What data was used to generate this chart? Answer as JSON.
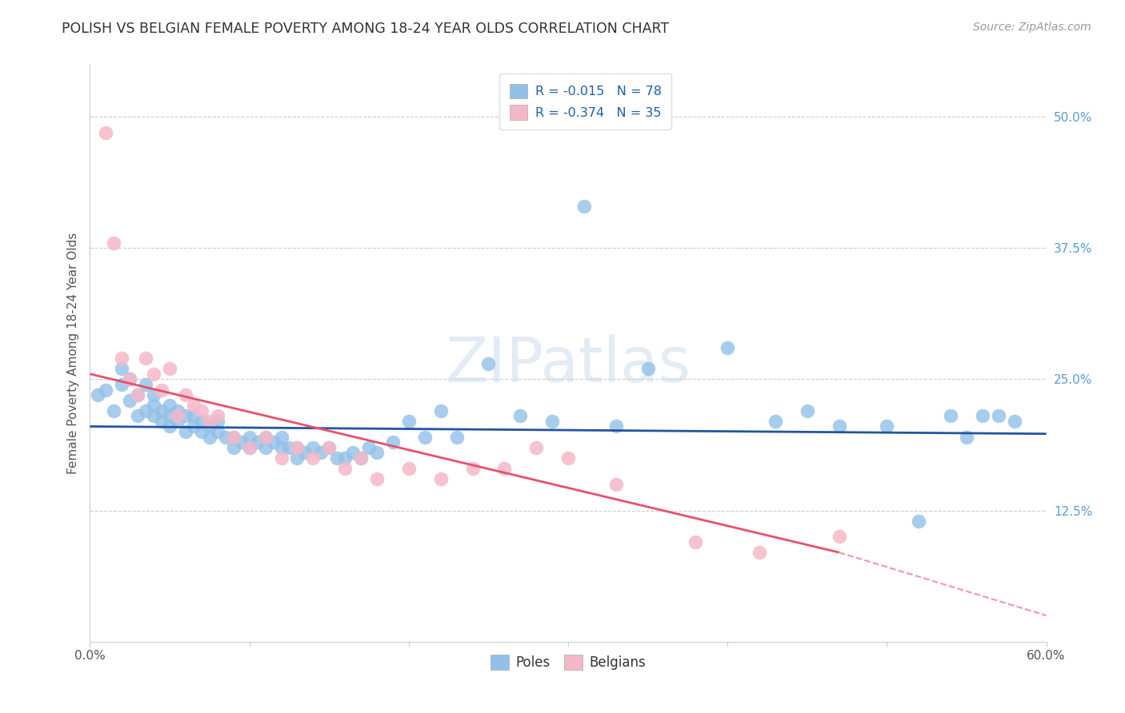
{
  "title": "POLISH VS BELGIAN FEMALE POVERTY AMONG 18-24 YEAR OLDS CORRELATION CHART",
  "source": "Source: ZipAtlas.com",
  "ylabel": "Female Poverty Among 18-24 Year Olds",
  "xlim": [
    0.0,
    0.6
  ],
  "ylim": [
    0.0,
    0.55
  ],
  "xticks": [
    0.0,
    0.1,
    0.2,
    0.3,
    0.4,
    0.5,
    0.6
  ],
  "xticklabels": [
    "0.0%",
    "",
    "",
    "",
    "",
    "",
    "60.0%"
  ],
  "yticks_right": [
    0.125,
    0.25,
    0.375,
    0.5
  ],
  "ytick_right_labels": [
    "12.5%",
    "25.0%",
    "37.5%",
    "50.0%"
  ],
  "r_poles": -0.015,
  "n_poles": 78,
  "r_belgians": -0.374,
  "n_belgians": 35,
  "poles_color": "#92C0E8",
  "belgians_color": "#F5B8C8",
  "trend_poles_color": "#2255A0",
  "trend_belgians_color": "#E8506A",
  "watermark": "ZIPatlas",
  "poles_x": [
    0.005,
    0.01,
    0.015,
    0.02,
    0.02,
    0.025,
    0.025,
    0.03,
    0.03,
    0.035,
    0.035,
    0.04,
    0.04,
    0.04,
    0.045,
    0.045,
    0.05,
    0.05,
    0.05,
    0.055,
    0.055,
    0.06,
    0.06,
    0.065,
    0.065,
    0.07,
    0.07,
    0.075,
    0.075,
    0.08,
    0.08,
    0.085,
    0.09,
    0.09,
    0.095,
    0.1,
    0.1,
    0.105,
    0.11,
    0.11,
    0.115,
    0.12,
    0.12,
    0.125,
    0.13,
    0.13,
    0.135,
    0.14,
    0.145,
    0.15,
    0.155,
    0.16,
    0.165,
    0.17,
    0.175,
    0.18,
    0.19,
    0.2,
    0.21,
    0.22,
    0.23,
    0.25,
    0.27,
    0.29,
    0.31,
    0.33,
    0.35,
    0.4,
    0.43,
    0.45,
    0.47,
    0.5,
    0.52,
    0.54,
    0.55,
    0.56,
    0.57,
    0.58
  ],
  "poles_y": [
    0.235,
    0.24,
    0.22,
    0.245,
    0.26,
    0.23,
    0.25,
    0.215,
    0.235,
    0.22,
    0.245,
    0.215,
    0.225,
    0.235,
    0.21,
    0.22,
    0.205,
    0.215,
    0.225,
    0.21,
    0.22,
    0.2,
    0.215,
    0.205,
    0.215,
    0.2,
    0.21,
    0.195,
    0.205,
    0.2,
    0.21,
    0.195,
    0.185,
    0.195,
    0.19,
    0.185,
    0.195,
    0.19,
    0.185,
    0.195,
    0.19,
    0.185,
    0.195,
    0.185,
    0.175,
    0.185,
    0.18,
    0.185,
    0.18,
    0.185,
    0.175,
    0.175,
    0.18,
    0.175,
    0.185,
    0.18,
    0.19,
    0.21,
    0.195,
    0.22,
    0.195,
    0.265,
    0.215,
    0.21,
    0.415,
    0.205,
    0.26,
    0.28,
    0.21,
    0.22,
    0.205,
    0.205,
    0.115,
    0.215,
    0.195,
    0.215,
    0.215,
    0.21
  ],
  "belgians_x": [
    0.01,
    0.015,
    0.02,
    0.025,
    0.03,
    0.035,
    0.04,
    0.045,
    0.05,
    0.055,
    0.06,
    0.065,
    0.07,
    0.075,
    0.08,
    0.09,
    0.1,
    0.11,
    0.12,
    0.13,
    0.14,
    0.15,
    0.16,
    0.17,
    0.18,
    0.2,
    0.22,
    0.24,
    0.26,
    0.28,
    0.3,
    0.33,
    0.38,
    0.42,
    0.47
  ],
  "belgians_y": [
    0.485,
    0.38,
    0.27,
    0.25,
    0.235,
    0.27,
    0.255,
    0.24,
    0.26,
    0.215,
    0.235,
    0.225,
    0.22,
    0.21,
    0.215,
    0.195,
    0.185,
    0.195,
    0.175,
    0.185,
    0.175,
    0.185,
    0.165,
    0.175,
    0.155,
    0.165,
    0.155,
    0.165,
    0.165,
    0.185,
    0.175,
    0.15,
    0.095,
    0.085,
    0.1
  ],
  "trend_poles_start_x": 0.0,
  "trend_poles_end_x": 0.6,
  "trend_poles_start_y": 0.205,
  "trend_poles_end_y": 0.198,
  "trend_belg_start_x": 0.0,
  "trend_belg_end_x": 0.47,
  "trend_belg_start_y": 0.255,
  "trend_belg_end_y": 0.085,
  "trend_belg_dash_end_x": 0.6,
  "trend_belg_dash_end_y": 0.025
}
